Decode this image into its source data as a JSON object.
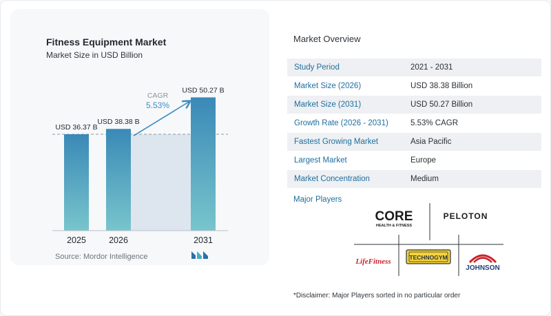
{
  "chart_data": {
    "type": "bar",
    "title": "Fitness Equipment Market",
    "subtitle": "Market Size in USD Billion",
    "categories": [
      "2025",
      "2026",
      "2031"
    ],
    "values": [
      36.37,
      38.38,
      50.27
    ],
    "value_labels": [
      "USD 36.37 B",
      "USD 38.38 B",
      "USD 50.27 B"
    ],
    "cagr_label": "CAGR",
    "cagr_value": "5.53%",
    "ylim": [
      0,
      55
    ],
    "grid": false,
    "colors": {
      "bar_top": "#3a89b7",
      "bar_bottom": "#78c5cc",
      "band": "#dde6ef",
      "arrow": "#3a8fc4",
      "dashed_line": "#8d969e"
    }
  },
  "source": "Source:  Mordor Intelligence",
  "overview": {
    "title": "Market Overview",
    "rows": [
      {
        "label": "Study Period",
        "value": "2021 - 2031"
      },
      {
        "label": "Market Size (2026)",
        "value": "USD 38.38 Billion"
      },
      {
        "label": "Market Size (2031)",
        "value": "USD 50.27 Billion"
      },
      {
        "label": "Growth Rate (2026 - 2031)",
        "value": "5.53% CAGR"
      },
      {
        "label": "Fastest Growing Market",
        "value": "Asia Pacific"
      },
      {
        "label": "Largest Market",
        "value": "Europe"
      },
      {
        "label": "Market Concentration",
        "value": "Medium"
      }
    ]
  },
  "players": {
    "title": "Major Players",
    "logos": [
      "CORE",
      "HEALTH & FITNESS",
      "PELOTON",
      "LifeFitness",
      "TECHNOGYM",
      "JOHNSON"
    ]
  },
  "disclaimer": "*Disclaimer: Major Players sorted in no particular order"
}
